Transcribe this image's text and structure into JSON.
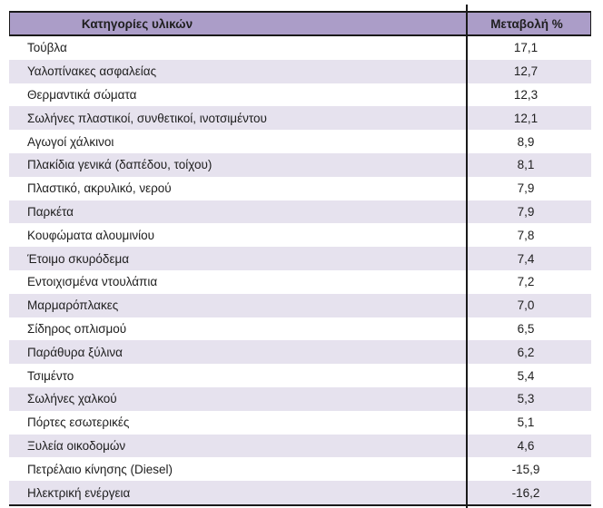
{
  "table": {
    "columns": [
      {
        "label": "Κατηγορίες υλικών"
      },
      {
        "label": "Μεταβολή %"
      }
    ],
    "rows": [
      {
        "category": "Τούβλα",
        "change": "17,1"
      },
      {
        "category": "Υαλοπίνακες ασφαλείας",
        "change": "12,7"
      },
      {
        "category": "Θερμαντικά σώματα",
        "change": "12,3"
      },
      {
        "category": "Σωλήνες πλαστικοί, συνθετικοί, ινοτσιμέντου",
        "change": "12,1"
      },
      {
        "category": "Αγωγοί χάλκινοι",
        "change": "8,9"
      },
      {
        "category": "Πλακίδια γενικά (δαπέδου, τοίχου)",
        "change": "8,1"
      },
      {
        "category": "Πλαστικό, ακρυλικό, νερού",
        "change": "7,9"
      },
      {
        "category": "Παρκέτα",
        "change": "7,9"
      },
      {
        "category": "Κουφώματα αλουμινίου",
        "change": "7,8"
      },
      {
        "category": "Έτοιμο σκυρόδεμα",
        "change": "7,4"
      },
      {
        "category": "Εντοιχισμένα ντουλάπια",
        "change": "7,2"
      },
      {
        "category": "Μαρμαρόπλακες",
        "change": "7,0"
      },
      {
        "category": "Σίδηρος οπλισμού",
        "change": "6,5"
      },
      {
        "category": "Παράθυρα ξύλινα",
        "change": "6,2"
      },
      {
        "category": "Τσιμέντο",
        "change": "5,4"
      },
      {
        "category": "Σωλήνες χαλκού",
        "change": "5,3"
      },
      {
        "category": "Πόρτες εσωτερικές",
        "change": "5,1"
      },
      {
        "category": "Ξυλεία οικοδομών",
        "change": "4,6"
      },
      {
        "category": "Πετρέλαιο κίνησης (Diesel)",
        "change": "-15,9"
      },
      {
        "category": "Ηλεκτρική ενέργεια",
        "change": "-16,2"
      }
    ]
  },
  "chart_data": {
    "type": "table",
    "columns": [
      "Κατηγορίες υλικών",
      "Μεταβολή %"
    ],
    "categories": [
      "Τούβλα",
      "Υαλοπίνακες ασφαλείας",
      "Θερμαντικά σώματα",
      "Σωλήνες πλαστικοί, συνθετικοί, ινοτσιμέντου",
      "Αγωγοί χάλκινοι",
      "Πλακίδια γενικά (δαπέδου, τοίχου)",
      "Πλαστικό, ακρυλικό, νερού",
      "Παρκέτα",
      "Κουφώματα αλουμινίου",
      "Έτοιμο σκυρόδεμα",
      "Εντοιχισμένα ντουλάπια",
      "Μαρμαρόπλακες",
      "Σίδηρος οπλισμού",
      "Παράθυρα ξύλινα",
      "Τσιμέντο",
      "Σωλήνες χαλκού",
      "Πόρτες εσωτερικές",
      "Ξυλεία οικοδομών",
      "Πετρέλαιο κίνησης (Diesel)",
      "Ηλεκτρική ενέργεια"
    ],
    "values": [
      17.1,
      12.7,
      12.3,
      12.1,
      8.9,
      8.1,
      7.9,
      7.9,
      7.8,
      7.4,
      7.2,
      7.0,
      6.5,
      6.2,
      5.4,
      5.3,
      5.1,
      4.6,
      -15.9,
      -16.2
    ],
    "layout": {
      "alternating_rows": true,
      "value_alignment": "center"
    }
  },
  "colors": {
    "header_bg": "#ab9dc8",
    "row_alt_bg": "#e6e2ee",
    "border": "#1a1a1a",
    "text": "#1e1e1e"
  }
}
